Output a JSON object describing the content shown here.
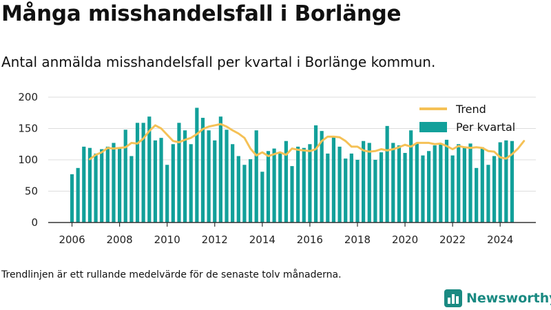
{
  "title": "Många misshandelsfall i Borlänge",
  "subtitle": "Antal anmälda misshandelsfall per kvartal i Borlänge kommun.",
  "footnote": "Trendlinjen är ett rullande medelvärde för de senaste tolv månaderna.",
  "brand": {
    "name": "Newsworthy",
    "logo_icon": "bar-chart-logo-icon"
  },
  "colors": {
    "bars": "#12a09a",
    "trend": "#f5c156",
    "grid": "#dddddd",
    "axis": "#333333",
    "brand": "#1a8a82"
  },
  "chart_data": {
    "type": "bar",
    "x_ticks": [
      "2006",
      "2008",
      "2010",
      "2012",
      "2014",
      "2016",
      "2018",
      "2020",
      "2022",
      "2024"
    ],
    "y_ticks": [
      "0",
      "50",
      "100",
      "150",
      "200"
    ],
    "ylim": [
      0,
      200
    ],
    "xlim": [
      2005,
      2025.5
    ],
    "grid": true,
    "legend_position": "top-right",
    "xlabel": "",
    "ylabel": "",
    "series": [
      {
        "name": "Per kvartal",
        "type": "bar",
        "start": "2006 Q1",
        "values": [
          77,
          87,
          121,
          119,
          110,
          117,
          121,
          127,
          119,
          148,
          106,
          159,
          159,
          169,
          131,
          135,
          92,
          125,
          159,
          147,
          125,
          183,
          167,
          147,
          131,
          169,
          148,
          125,
          106,
          92,
          101,
          147,
          81,
          114,
          118,
          112,
          130,
          90,
          121,
          119,
          125,
          155,
          146,
          110,
          137,
          121,
          102,
          110,
          100,
          130,
          127,
          100,
          112,
          154,
          127,
          123,
          111,
          147,
          127,
          107,
          114,
          123,
          126,
          132,
          107,
          125,
          121,
          126,
          87,
          120,
          92,
          106,
          128,
          131,
          130
        ]
      },
      {
        "name": "Trend",
        "type": "line",
        "start": "2006 Q4",
        "values": [
          101,
          108,
          112,
          119,
          118,
          119,
          120,
          127,
          126,
          134,
          146,
          155,
          150,
          140,
          130,
          128,
          132,
          135,
          141,
          149,
          153,
          155,
          157,
          153,
          147,
          142,
          135,
          118,
          107,
          112,
          106,
          109,
          112,
          108,
          118,
          116,
          115,
          114,
          117,
          130,
          137,
          137,
          136,
          130,
          121,
          121,
          115,
          113,
          114,
          117,
          115,
          117,
          120,
          124,
          121,
          127,
          127,
          127,
          125,
          126,
          122,
          117,
          122,
          120,
          119,
          120,
          119,
          114,
          113,
          104,
          102,
          109,
          118,
          130
        ]
      }
    ]
  }
}
